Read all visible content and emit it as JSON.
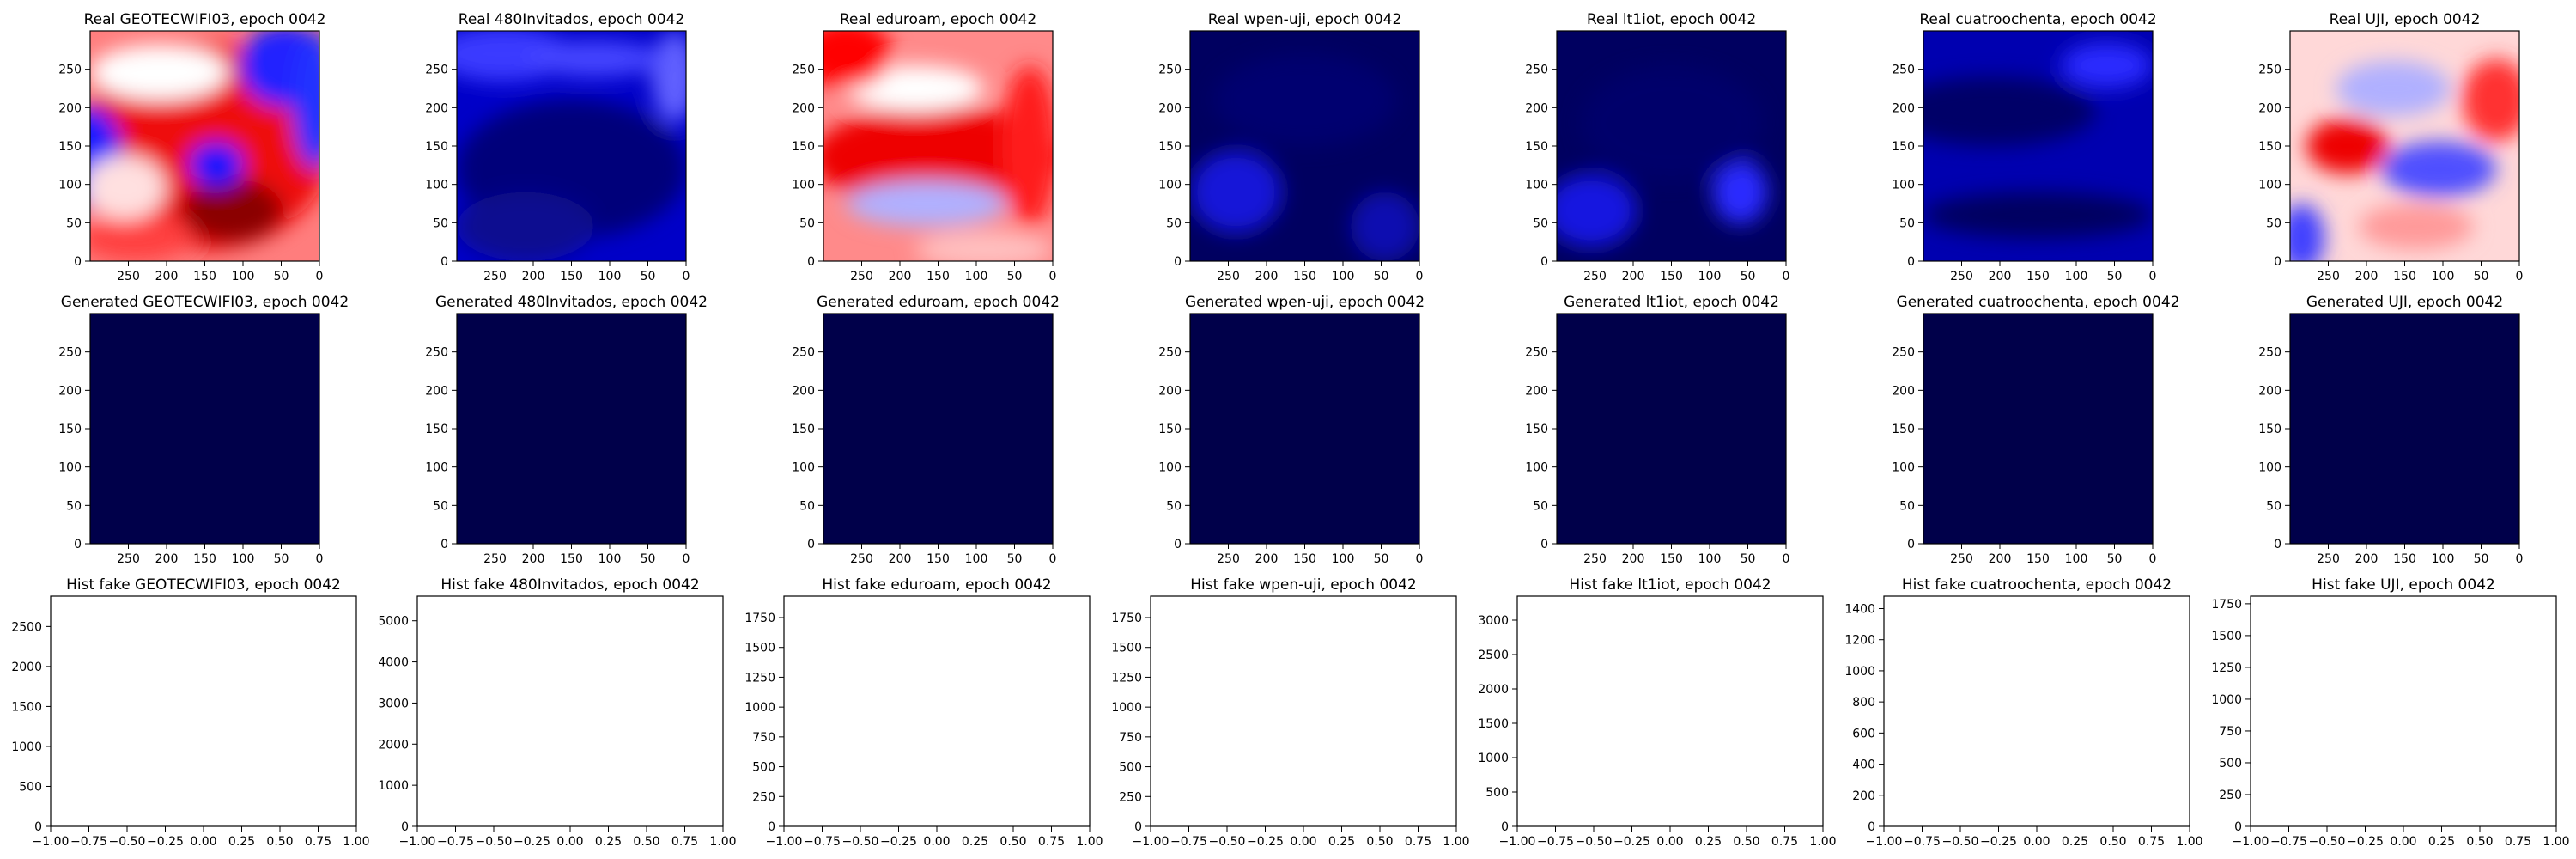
{
  "figure": {
    "epoch": "0042",
    "networks": [
      "GEOTECWIFI03",
      "480Invitados",
      "eduroam",
      "wpen-uji",
      "lt1iot",
      "cuatroochenta",
      "UJI"
    ]
  },
  "colors": {
    "generated_fill": "#00004a",
    "axis": "#000000",
    "background": "#ffffff"
  },
  "chart_data": [
    {
      "type": "heatmap",
      "title": "Real GEOTECWIFI03, epoch 0042",
      "x_ticks": [
        "250",
        "200",
        "150",
        "100",
        "50",
        "0"
      ],
      "y_ticks": [
        "0",
        "50",
        "100",
        "150",
        "200",
        "250"
      ],
      "xlim": [
        300,
        0
      ],
      "ylim": [
        0,
        300
      ],
      "colormap": "seismic"
    },
    {
      "type": "heatmap",
      "title": "Real 480Invitados, epoch 0042",
      "x_ticks": [
        "250",
        "200",
        "150",
        "100",
        "50",
        "0"
      ],
      "y_ticks": [
        "0",
        "50",
        "100",
        "150",
        "200",
        "250"
      ],
      "xlim": [
        300,
        0
      ],
      "ylim": [
        0,
        300
      ],
      "colormap": "seismic"
    },
    {
      "type": "heatmap",
      "title": "Real eduroam, epoch 0042",
      "x_ticks": [
        "250",
        "200",
        "150",
        "100",
        "50",
        "0"
      ],
      "y_ticks": [
        "0",
        "50",
        "100",
        "150",
        "200",
        "250"
      ],
      "xlim": [
        300,
        0
      ],
      "ylim": [
        0,
        300
      ],
      "colormap": "seismic"
    },
    {
      "type": "heatmap",
      "title": "Real wpen-uji, epoch 0042",
      "x_ticks": [
        "250",
        "200",
        "150",
        "100",
        "50",
        "0"
      ],
      "y_ticks": [
        "0",
        "50",
        "100",
        "150",
        "200",
        "250"
      ],
      "xlim": [
        300,
        0
      ],
      "ylim": [
        0,
        300
      ],
      "colormap": "seismic"
    },
    {
      "type": "heatmap",
      "title": "Real lt1iot, epoch 0042",
      "x_ticks": [
        "250",
        "200",
        "150",
        "100",
        "50",
        "0"
      ],
      "y_ticks": [
        "0",
        "50",
        "100",
        "150",
        "200",
        "250"
      ],
      "xlim": [
        300,
        0
      ],
      "ylim": [
        0,
        300
      ],
      "colormap": "seismic"
    },
    {
      "type": "heatmap",
      "title": "Real cuatroochenta, epoch 0042",
      "x_ticks": [
        "250",
        "200",
        "150",
        "100",
        "50",
        "0"
      ],
      "y_ticks": [
        "0",
        "50",
        "100",
        "150",
        "200",
        "250"
      ],
      "xlim": [
        300,
        0
      ],
      "ylim": [
        0,
        300
      ],
      "colormap": "seismic"
    },
    {
      "type": "heatmap",
      "title": "Real UJI, epoch 0042",
      "x_ticks": [
        "250",
        "200",
        "150",
        "100",
        "50",
        "0"
      ],
      "y_ticks": [
        "0",
        "50",
        "100",
        "150",
        "200",
        "250"
      ],
      "xlim": [
        300,
        0
      ],
      "ylim": [
        0,
        300
      ],
      "colormap": "seismic"
    },
    {
      "type": "heatmap",
      "title": "Generated GEOTECWIFI03, epoch 0042",
      "x_ticks": [
        "250",
        "200",
        "150",
        "100",
        "50",
        "0"
      ],
      "y_ticks": [
        "0",
        "50",
        "100",
        "150",
        "200",
        "250"
      ],
      "xlim": [
        300,
        0
      ],
      "ylim": [
        0,
        300
      ],
      "uniform": true
    },
    {
      "type": "heatmap",
      "title": "Generated 480Invitados, epoch 0042",
      "x_ticks": [
        "250",
        "200",
        "150",
        "100",
        "50",
        "0"
      ],
      "y_ticks": [
        "0",
        "50",
        "100",
        "150",
        "200",
        "250"
      ],
      "xlim": [
        300,
        0
      ],
      "ylim": [
        0,
        300
      ],
      "uniform": true
    },
    {
      "type": "heatmap",
      "title": "Generated eduroam, epoch 0042",
      "x_ticks": [
        "250",
        "200",
        "150",
        "100",
        "50",
        "0"
      ],
      "y_ticks": [
        "0",
        "50",
        "100",
        "150",
        "200",
        "250"
      ],
      "xlim": [
        300,
        0
      ],
      "ylim": [
        0,
        300
      ],
      "uniform": true
    },
    {
      "type": "heatmap",
      "title": "Generated wpen-uji, epoch 0042",
      "x_ticks": [
        "250",
        "200",
        "150",
        "100",
        "50",
        "0"
      ],
      "y_ticks": [
        "0",
        "50",
        "100",
        "150",
        "200",
        "250"
      ],
      "xlim": [
        300,
        0
      ],
      "ylim": [
        0,
        300
      ],
      "uniform": true
    },
    {
      "type": "heatmap",
      "title": "Generated lt1iot, epoch 0042",
      "x_ticks": [
        "250",
        "200",
        "150",
        "100",
        "50",
        "0"
      ],
      "y_ticks": [
        "0",
        "50",
        "100",
        "150",
        "200",
        "250"
      ],
      "xlim": [
        300,
        0
      ],
      "ylim": [
        0,
        300
      ],
      "uniform": true
    },
    {
      "type": "heatmap",
      "title": "Generated cuatroochenta, epoch 0042",
      "x_ticks": [
        "250",
        "200",
        "150",
        "100",
        "50",
        "0"
      ],
      "y_ticks": [
        "0",
        "50",
        "100",
        "150",
        "200",
        "250"
      ],
      "xlim": [
        300,
        0
      ],
      "ylim": [
        0,
        300
      ],
      "uniform": true
    },
    {
      "type": "heatmap",
      "title": "Generated UJI, epoch 0042",
      "x_ticks": [
        "250",
        "200",
        "150",
        "100",
        "50",
        "0"
      ],
      "y_ticks": [
        "0",
        "50",
        "100",
        "150",
        "200",
        "250"
      ],
      "xlim": [
        300,
        0
      ],
      "ylim": [
        0,
        300
      ],
      "uniform": true
    },
    {
      "type": "bar",
      "title": "Hist fake GEOTECWIFI03, epoch 0042",
      "values": [],
      "x_ticks": [
        "−1.00",
        "−0.75",
        "−0.50",
        "−0.25",
        "0.00",
        "0.25",
        "0.50",
        "0.75",
        "1.00"
      ],
      "xlim": [
        -1,
        1
      ],
      "y_ticks": [
        "0",
        "500",
        "1000",
        "1500",
        "2000",
        "2500"
      ],
      "ylim": [
        0,
        2880
      ]
    },
    {
      "type": "bar",
      "title": "Hist fake 480Invitados, epoch 0042",
      "values": [],
      "x_ticks": [
        "−1.00",
        "−0.75",
        "−0.50",
        "−0.25",
        "0.00",
        "0.25",
        "0.50",
        "0.75",
        "1.00"
      ],
      "xlim": [
        -1,
        1
      ],
      "y_ticks": [
        "0",
        "1000",
        "2000",
        "3000",
        "4000",
        "5000"
      ],
      "ylim": [
        0,
        5600
      ]
    },
    {
      "type": "bar",
      "title": "Hist fake eduroam, epoch 0042",
      "values": [],
      "x_ticks": [
        "−1.00",
        "−0.75",
        "−0.50",
        "−0.25",
        "0.00",
        "0.25",
        "0.50",
        "0.75",
        "1.00"
      ],
      "xlim": [
        -1,
        1
      ],
      "y_ticks": [
        "0",
        "250",
        "500",
        "750",
        "1000",
        "1250",
        "1500",
        "1750"
      ],
      "ylim": [
        0,
        1930
      ]
    },
    {
      "type": "bar",
      "title": "Hist fake wpen-uji, epoch 0042",
      "values": [],
      "x_ticks": [
        "−1.00",
        "−0.75",
        "−0.50",
        "−0.25",
        "0.00",
        "0.25",
        "0.50",
        "0.75",
        "1.00"
      ],
      "xlim": [
        -1,
        1
      ],
      "y_ticks": [
        "0",
        "250",
        "500",
        "750",
        "1000",
        "1250",
        "1500",
        "1750"
      ],
      "ylim": [
        0,
        1930
      ]
    },
    {
      "type": "bar",
      "title": "Hist fake lt1iot, epoch 0042",
      "values": [],
      "x_ticks": [
        "−1.00",
        "−0.75",
        "−0.50",
        "−0.25",
        "0.00",
        "0.25",
        "0.50",
        "0.75",
        "1.00"
      ],
      "xlim": [
        -1,
        1
      ],
      "y_ticks": [
        "0",
        "500",
        "1000",
        "1500",
        "2000",
        "2500",
        "3000"
      ],
      "ylim": [
        0,
        3350
      ]
    },
    {
      "type": "bar",
      "title": "Hist fake cuatroochenta, epoch 0042",
      "values": [],
      "x_ticks": [
        "−1.00",
        "−0.75",
        "−0.50",
        "−0.25",
        "0.00",
        "0.25",
        "0.50",
        "0.75",
        "1.00"
      ],
      "xlim": [
        -1,
        1
      ],
      "y_ticks": [
        "0",
        "200",
        "400",
        "600",
        "800",
        "1000",
        "1200",
        "1400"
      ],
      "ylim": [
        0,
        1480
      ]
    },
    {
      "type": "bar",
      "title": "Hist fake UJI, epoch 0042",
      "values": [],
      "x_ticks": [
        "−1.00",
        "−0.75",
        "−0.50",
        "−0.25",
        "0.00",
        "0.25",
        "0.50",
        "0.75",
        "1.00"
      ],
      "xlim": [
        -1,
        1
      ],
      "y_ticks": [
        "0",
        "250",
        "500",
        "750",
        "1000",
        "1250",
        "1500",
        "1750"
      ],
      "ylim": [
        0,
        1810
      ]
    }
  ]
}
